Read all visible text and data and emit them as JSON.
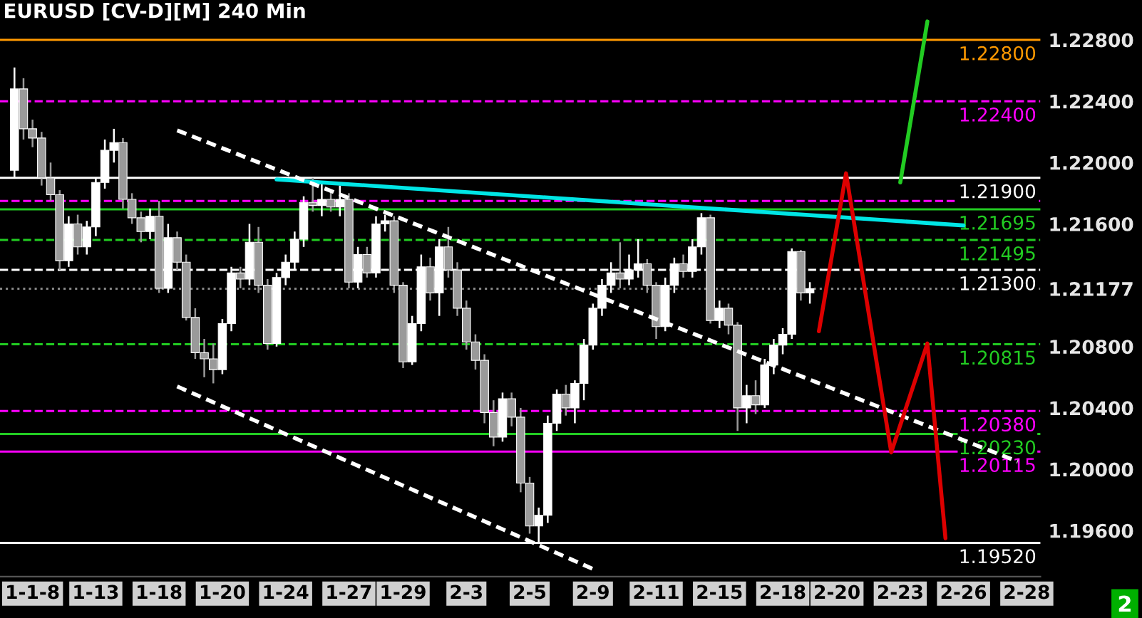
{
  "chart_data": {
    "type": "candlestick",
    "title": "EURUSD [CV-D][M] 240 Min",
    "categories": [
      null,
      null,
      "1-1-8",
      null,
      null,
      null,
      null,
      null,
      null,
      "1-13",
      null,
      null,
      null,
      null,
      null,
      null,
      "1-18",
      null,
      null,
      null,
      null,
      null,
      null,
      "1-20",
      null,
      null,
      null,
      null,
      null,
      null,
      "1-24",
      null,
      null,
      null,
      null,
      null,
      null,
      "1-27",
      null,
      null,
      null,
      null,
      null,
      "1-29",
      null,
      null,
      null,
      null,
      null,
      null,
      "2-3",
      null,
      null,
      null,
      null,
      null,
      null,
      "2-5",
      null,
      null,
      null,
      null,
      null,
      null,
      "2-9",
      null,
      null,
      null,
      null,
      null,
      null,
      "2-11",
      null,
      null,
      null,
      null,
      null,
      null,
      "2-15",
      null,
      null,
      null,
      null,
      null,
      null,
      "2-18",
      null,
      null,
      null,
      null,
      null,
      "2-20",
      null,
      null,
      null,
      null,
      null,
      null,
      "2-23",
      null,
      null,
      null,
      null,
      null,
      null,
      "2-26",
      null,
      null,
      null,
      null,
      null,
      null,
      "2-28",
      null
    ],
    "ohlc": [
      [
        1.2195,
        1.2262,
        1.219,
        1.2248
      ],
      [
        1.2248,
        1.2255,
        1.2215,
        1.2222
      ],
      [
        1.2222,
        1.2228,
        1.221,
        1.2216
      ],
      [
        1.2216,
        1.222,
        1.2185,
        1.219
      ],
      [
        1.219,
        1.22,
        1.2175,
        1.2179
      ],
      [
        1.2179,
        1.2182,
        1.213,
        1.2136
      ],
      [
        1.2136,
        1.2165,
        1.2132,
        1.216
      ],
      [
        1.216,
        1.2166,
        1.214,
        1.2145
      ],
      [
        1.2145,
        1.2162,
        1.214,
        1.2158
      ],
      [
        1.2158,
        1.219,
        1.2152,
        1.2187
      ],
      [
        1.2187,
        1.2215,
        1.2183,
        1.2208
      ],
      [
        1.2208,
        1.2222,
        1.22,
        1.2213
      ],
      [
        1.2213,
        1.2216,
        1.217,
        1.2176
      ],
      [
        1.2176,
        1.218,
        1.216,
        1.2164
      ],
      [
        1.2164,
        1.2168,
        1.2148,
        1.2155
      ],
      [
        1.2155,
        1.217,
        1.215,
        1.2165
      ],
      [
        1.2165,
        1.2175,
        1.2115,
        1.2118
      ],
      [
        1.2118,
        1.216,
        1.2115,
        1.2151
      ],
      [
        1.2151,
        1.2155,
        1.213,
        1.2135
      ],
      [
        1.2135,
        1.214,
        1.2097,
        1.2099
      ],
      [
        1.2099,
        1.2105,
        1.2072,
        1.2076
      ],
      [
        1.2076,
        1.2085,
        1.206,
        1.2072
      ],
      [
        1.2072,
        1.2082,
        1.2056,
        1.2065
      ],
      [
        1.2065,
        1.2098,
        1.2062,
        1.2095
      ],
      [
        1.2095,
        1.2132,
        1.209,
        1.2128
      ],
      [
        1.2128,
        1.2132,
        1.2118,
        1.2124
      ],
      [
        1.2124,
        1.216,
        1.212,
        1.2148
      ],
      [
        1.2148,
        1.2158,
        1.2115,
        1.212
      ],
      [
        1.212,
        1.2124,
        1.2078,
        1.2082
      ],
      [
        1.2082,
        1.2128,
        1.208,
        1.2125
      ],
      [
        1.2125,
        1.214,
        1.212,
        1.2135
      ],
      [
        1.2135,
        1.2155,
        1.213,
        1.215
      ],
      [
        1.215,
        1.2178,
        1.2145,
        1.2174
      ],
      [
        1.2174,
        1.219,
        1.2168,
        1.2172
      ],
      [
        1.2172,
        1.2188,
        1.2165,
        1.2176
      ],
      [
        1.2176,
        1.2182,
        1.2168,
        1.2171
      ],
      [
        1.2171,
        1.2185,
        1.2165,
        1.2176
      ],
      [
        1.2176,
        1.218,
        1.2118,
        1.2122
      ],
      [
        1.2122,
        1.2145,
        1.2118,
        1.214
      ],
      [
        1.214,
        1.2145,
        1.2125,
        1.2128
      ],
      [
        1.2128,
        1.2165,
        1.2125,
        1.216
      ],
      [
        1.216,
        1.2166,
        1.2155,
        1.2162
      ],
      [
        1.2162,
        1.2165,
        1.2115,
        1.212
      ],
      [
        1.212,
        1.2122,
        1.2066,
        1.207
      ],
      [
        1.207,
        1.21,
        1.2068,
        1.2095
      ],
      [
        1.2095,
        1.214,
        1.209,
        1.2132
      ],
      [
        1.2132,
        1.2138,
        1.211,
        1.2115
      ],
      [
        1.2115,
        1.215,
        1.21,
        1.2145
      ],
      [
        1.2145,
        1.2158,
        1.2125,
        1.213
      ],
      [
        1.213,
        1.2135,
        1.21,
        1.2105
      ],
      [
        1.2105,
        1.211,
        1.2078,
        1.2083
      ],
      [
        1.2083,
        1.2088,
        1.2065,
        1.2071
      ],
      [
        1.2071,
        1.2075,
        1.203,
        1.2037
      ],
      [
        1.2037,
        1.2045,
        1.2015,
        1.2021
      ],
      [
        1.2021,
        1.205,
        1.2018,
        1.2046
      ],
      [
        1.2046,
        1.205,
        1.2028,
        1.2034
      ],
      [
        1.2034,
        1.204,
        1.1985,
        1.1991
      ],
      [
        1.1991,
        1.1995,
        1.1958,
        1.1963
      ],
      [
        1.1963,
        1.1975,
        1.1952,
        1.197
      ],
      [
        1.197,
        1.2035,
        1.1965,
        1.203
      ],
      [
        1.203,
        1.2052,
        1.2025,
        1.2049
      ],
      [
        1.2049,
        1.2055,
        1.2035,
        1.204
      ],
      [
        1.204,
        1.2058,
        1.203,
        1.2056
      ],
      [
        1.2056,
        1.2085,
        1.2045,
        1.2081
      ],
      [
        1.2081,
        1.2108,
        1.2078,
        1.2105
      ],
      [
        1.2105,
        1.2124,
        1.21,
        1.212
      ],
      [
        1.212,
        1.2135,
        1.2115,
        1.2128
      ],
      [
        1.2128,
        1.2148,
        1.2118,
        1.2124
      ],
      [
        1.2124,
        1.214,
        1.212,
        1.213
      ],
      [
        1.213,
        1.215,
        1.2125,
        1.2134
      ],
      [
        1.2134,
        1.2137,
        1.2115,
        1.212
      ],
      [
        1.212,
        1.2122,
        1.2085,
        1.2093
      ],
      [
        1.2093,
        1.2125,
        1.209,
        1.212
      ],
      [
        1.212,
        1.2138,
        1.2115,
        1.2134
      ],
      [
        1.2134,
        1.214,
        1.2125,
        1.2129
      ],
      [
        1.2129,
        1.215,
        1.2125,
        1.2145
      ],
      [
        1.2145,
        1.2167,
        1.214,
        1.2164
      ],
      [
        1.2164,
        1.2166,
        1.2095,
        1.2097
      ],
      [
        1.2097,
        1.211,
        1.2092,
        1.2105
      ],
      [
        1.2105,
        1.2108,
        1.2088,
        1.2094
      ],
      [
        1.2094,
        1.2096,
        1.2025,
        1.204
      ],
      [
        1.204,
        1.2055,
        1.203,
        1.2048
      ],
      [
        1.2048,
        1.2058,
        1.2036,
        1.2042
      ],
      [
        1.2042,
        1.2072,
        1.204,
        1.2068
      ],
      [
        1.2068,
        1.2085,
        1.2062,
        1.2081
      ],
      [
        1.2081,
        1.2092,
        1.2075,
        1.2088
      ],
      [
        1.2088,
        1.2144,
        1.2085,
        1.2142
      ],
      [
        1.2142,
        1.2143,
        1.211,
        1.2115
      ],
      [
        1.2115,
        1.2122,
        1.2108,
        1.21177
      ],
      null,
      null,
      null,
      null,
      null,
      null,
      null,
      null,
      null,
      null,
      null,
      null,
      null,
      null,
      null,
      null,
      null,
      null,
      null,
      null,
      null,
      null,
      null,
      null,
      null
    ],
    "colors": [
      "#ffffff",
      "#9a9a9a",
      "#9a9a9a",
      "#9a9a9a",
      "#9a9a9a",
      "#9a9a9a",
      "#ffffff",
      "#9a9a9a",
      "#ffffff",
      "#ffffff",
      "#ffffff",
      "#ffffff",
      "#9a9a9a",
      "#9a9a9a",
      "#9a9a9a",
      "#ffffff",
      "#9a9a9a",
      "#ffffff",
      "#9a9a9a",
      "#9a9a9a",
      "#9a9a9a",
      "#9a9a9a",
      "#9a9a9a",
      "#ffffff",
      "#ffffff",
      "#9a9a9a",
      "#ffffff",
      "#9a9a9a",
      "#9a9a9a",
      "#ffffff",
      "#ffffff",
      "#ffffff",
      "#ffffff",
      "#9a9a9a",
      "#ffffff",
      "#9a9a9a",
      "#ffffff",
      "#9a9a9a",
      "#ffffff",
      "#9a9a9a",
      "#ffffff",
      "#ffffff",
      "#9a9a9a",
      "#9a9a9a",
      "#ffffff",
      "#ffffff",
      "#9a9a9a",
      "#ffffff",
      "#9a9a9a",
      "#9a9a9a",
      "#9a9a9a",
      "#9a9a9a",
      "#9a9a9a",
      "#9a9a9a",
      "#ffffff",
      "#9a9a9a",
      "#9a9a9a",
      "#9a9a9a",
      "#ffffff",
      "#ffffff",
      "#ffffff",
      "#9a9a9a",
      "#ffffff",
      "#ffffff",
      "#ffffff",
      "#ffffff",
      "#ffffff",
      "#9a9a9a",
      "#ffffff",
      "#ffffff",
      "#9a9a9a",
      "#9a9a9a",
      "#ffffff",
      "#ffffff",
      "#9a9a9a",
      "#ffffff",
      "#ffffff",
      "#9a9a9a",
      "#ffffff",
      "#9a9a9a",
      "#9a9a9a",
      "#ffffff",
      "#9a9a9a",
      "#ffffff",
      "#ffffff",
      "#ffffff",
      "#ffffff",
      "#9a9a9a",
      "#ffffff",
      null,
      null,
      null,
      null,
      null,
      null,
      null,
      null,
      null,
      null,
      null,
      null,
      null,
      null,
      null,
      null,
      null,
      null,
      null,
      null,
      null,
      null,
      null,
      null,
      null
    ],
    "series": [
      {
        "type": "line",
        "color": "#00e5e5",
        "line_style": "solid",
        "values": [
          null,
          null,
          null,
          null,
          null,
          null,
          null,
          null,
          null,
          null,
          null,
          null,
          null,
          null,
          null,
          null,
          null,
          null,
          null,
          null,
          null,
          null,
          null,
          null,
          null,
          null,
          null,
          null,
          null,
          1.2189,
          null,
          null,
          null,
          null,
          null,
          null,
          null,
          null,
          null,
          null,
          null,
          null,
          null,
          null,
          null,
          null,
          null,
          null,
          null,
          null,
          null,
          null,
          null,
          null,
          null,
          null,
          null,
          null,
          null,
          null,
          null,
          null,
          null,
          null,
          null,
          null,
          null,
          null,
          null,
          null,
          null,
          null,
          null,
          null,
          null,
          null,
          null,
          null,
          null,
          null,
          null,
          null,
          null,
          null,
          null,
          null,
          null,
          null,
          null,
          null,
          null,
          null,
          null,
          null,
          null,
          null,
          null,
          null,
          null,
          null,
          null,
          null,
          null,
          null,
          null,
          1.2159,
          null,
          null,
          null,
          null,
          null,
          null,
          null,
          null
        ]
      },
      {
        "type": "line",
        "color": "#ffffff",
        "line_style": "dashed",
        "values": [
          null,
          null,
          null,
          null,
          null,
          null,
          null,
          null,
          null,
          null,
          null,
          null,
          null,
          null,
          null,
          null,
          null,
          null,
          1.2221,
          null,
          null,
          null,
          null,
          null,
          null,
          null,
          null,
          null,
          null,
          null,
          null,
          null,
          null,
          null,
          null,
          null,
          null,
          null,
          null,
          null,
          null,
          null,
          null,
          null,
          null,
          null,
          null,
          null,
          null,
          null,
          null,
          null,
          null,
          null,
          null,
          null,
          null,
          null,
          null,
          null,
          null,
          null,
          null,
          null,
          null,
          null,
          null,
          null,
          null,
          null,
          null,
          null,
          null,
          null,
          null,
          null,
          null,
          null,
          null,
          null,
          null,
          null,
          null,
          null,
          null,
          null,
          null,
          null,
          null,
          null,
          null,
          null,
          null,
          null,
          null,
          null,
          null,
          null,
          null,
          null,
          null,
          null,
          null,
          null,
          null,
          null,
          null,
          null,
          null,
          null,
          null,
          1.2005,
          null,
          null
        ]
      },
      {
        "type": "line",
        "color": "#ffffff",
        "line_style": "dashed",
        "values": [
          null,
          null,
          null,
          null,
          null,
          null,
          null,
          null,
          null,
          null,
          null,
          null,
          null,
          null,
          null,
          null,
          null,
          null,
          1.2054,
          null,
          null,
          null,
          null,
          null,
          null,
          null,
          null,
          null,
          null,
          null,
          null,
          null,
          null,
          null,
          null,
          null,
          null,
          null,
          null,
          null,
          null,
          null,
          null,
          null,
          null,
          null,
          null,
          null,
          null,
          null,
          null,
          null,
          null,
          null,
          null,
          null,
          null,
          null,
          null,
          null,
          null,
          null,
          null,
          null,
          1.1935,
          null,
          null,
          null,
          null,
          null,
          null,
          null,
          null,
          null,
          null,
          null,
          null,
          null,
          null,
          null,
          null,
          null,
          null,
          null,
          null,
          null,
          null,
          null,
          null,
          null,
          null,
          null,
          null,
          null,
          null,
          null,
          null,
          null,
          null,
          null,
          null,
          null,
          null,
          null,
          null,
          null,
          null,
          null,
          null,
          null,
          null,
          null,
          null,
          null
        ]
      },
      {
        "type": "line",
        "color": "#dd0000",
        "line_style": "solid",
        "values": [
          null,
          null,
          null,
          null,
          null,
          null,
          null,
          null,
          null,
          null,
          null,
          null,
          null,
          null,
          null,
          null,
          null,
          null,
          null,
          null,
          null,
          null,
          null,
          null,
          null,
          null,
          null,
          null,
          null,
          null,
          null,
          null,
          null,
          null,
          null,
          null,
          null,
          null,
          null,
          null,
          null,
          null,
          null,
          null,
          null,
          null,
          null,
          null,
          null,
          null,
          null,
          null,
          null,
          null,
          null,
          null,
          null,
          null,
          null,
          null,
          null,
          null,
          null,
          null,
          null,
          null,
          null,
          null,
          null,
          null,
          null,
          null,
          null,
          null,
          null,
          null,
          null,
          null,
          null,
          null,
          null,
          null,
          null,
          null,
          null,
          null,
          null,
          null,
          null,
          1.209,
          null,
          null,
          1.2193,
          null,
          null,
          null,
          null,
          1.2011,
          null,
          null,
          null,
          1.2082,
          null,
          1.1955,
          null,
          null,
          null,
          null,
          null,
          null,
          null,
          null,
          null,
          null
        ]
      },
      {
        "type": "line",
        "color": "#22cc22",
        "line_style": "solid",
        "values": [
          null,
          null,
          null,
          null,
          null,
          null,
          null,
          null,
          null,
          null,
          null,
          null,
          null,
          null,
          null,
          null,
          null,
          null,
          null,
          null,
          null,
          null,
          null,
          null,
          null,
          null,
          null,
          null,
          null,
          null,
          null,
          null,
          null,
          null,
          null,
          null,
          null,
          null,
          null,
          null,
          null,
          null,
          null,
          null,
          null,
          null,
          null,
          null,
          null,
          null,
          null,
          null,
          null,
          null,
          null,
          null,
          null,
          null,
          null,
          null,
          null,
          null,
          null,
          null,
          null,
          null,
          null,
          null,
          null,
          null,
          null,
          null,
          null,
          null,
          null,
          null,
          null,
          null,
          null,
          null,
          null,
          null,
          null,
          null,
          null,
          null,
          null,
          null,
          null,
          null,
          null,
          null,
          null,
          null,
          null,
          null,
          null,
          null,
          1.2187,
          null,
          null,
          1.2292,
          null,
          null,
          null,
          null,
          null,
          null,
          null,
          null,
          null,
          null,
          null,
          null
        ]
      }
    ],
    "ref_lines": [
      {
        "axis": "y",
        "value": 1.228,
        "label": "1.22800",
        "color": "#ff9900",
        "line_style": "solid"
      },
      {
        "axis": "y",
        "value": 1.224,
        "label": "1.22400",
        "color": "#ff00ff",
        "line_style": "dashed"
      },
      {
        "axis": "y",
        "value": 1.219,
        "label": "1.21900",
        "color": "#ffffff",
        "line_style": "solid"
      },
      {
        "axis": "y",
        "value": 1.2175,
        "color": "#ff00ff",
        "line_style": "dashed"
      },
      {
        "axis": "y",
        "value": 1.21695,
        "label": "1.21695",
        "color": "#22cc22",
        "line_style": "solid"
      },
      {
        "axis": "y",
        "value": 1.21495,
        "label": "1.21495",
        "color": "#22cc22",
        "line_style": "dashed"
      },
      {
        "axis": "y",
        "value": 1.213,
        "label": "1.21300",
        "color": "#ffffff",
        "line_style": "dashed"
      },
      {
        "axis": "y",
        "value": 1.21177,
        "color": "#888888",
        "line_style": "dotted"
      },
      {
        "axis": "y",
        "value": 1.20815,
        "label": "1.20815",
        "color": "#22cc22",
        "line_style": "dashed"
      },
      {
        "axis": "y",
        "value": 1.2038,
        "label": "1.20380",
        "color": "#ff00ff",
        "line_style": "dashed"
      },
      {
        "axis": "y",
        "value": 1.2023,
        "label": "1.20230",
        "color": "#22cc22",
        "line_style": "solid"
      },
      {
        "axis": "y",
        "value": 1.20115,
        "label": "1.20115",
        "color": "#ff00ff",
        "line_style": "solid"
      },
      {
        "axis": "y",
        "value": 1.1952,
        "label": "1.19520",
        "color": "#ffffff",
        "line_style": "solid"
      }
    ],
    "ylim": [
      1.193,
      1.2306
    ],
    "yticks": [
      {
        "value": 1.228,
        "label": "1.22800"
      },
      {
        "value": 1.224,
        "label": "1.22400"
      },
      {
        "value": 1.22,
        "label": "1.22000"
      },
      {
        "value": 1.216,
        "label": "1.21600"
      },
      {
        "value": 1.21177,
        "label": "1.21177"
      },
      {
        "value": 1.208,
        "label": "1.20800"
      },
      {
        "value": 1.204,
        "label": "1.20400"
      },
      {
        "value": 1.2,
        "label": "1.20000"
      },
      {
        "value": 1.196,
        "label": "1.19600"
      }
    ],
    "grid": false,
    "legend": false,
    "annotations": [
      "2"
    ]
  }
}
